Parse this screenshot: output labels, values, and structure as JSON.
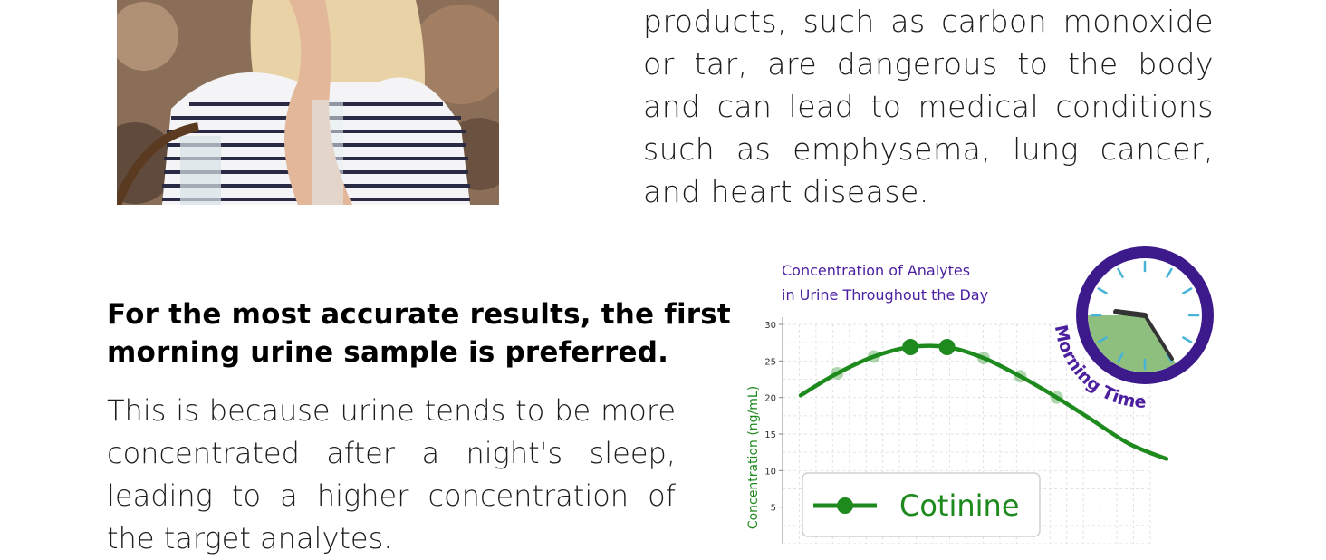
{
  "top_paragraph": {
    "lines": [
      "products, such as carbon monoxide",
      "or tar, are dangerous to the body",
      "and can lead to medical conditions",
      "such as emphysema, lung cancer,",
      "and heart disease."
    ]
  },
  "heading": {
    "line1": "For the most accurate results, the first",
    "line2": "morning urine sample is preferred."
  },
  "bottom_paragraph": {
    "lines": [
      "This is because urine tends to be more",
      "concentrated after a night's sleep,",
      "leading to a higher concentration of",
      "the target analytes."
    ]
  },
  "clock": {
    "label": "Morning Time",
    "ring_color": "#3d1a8c",
    "wedge_color": "#8fbf7f"
  },
  "chart_data": {
    "type": "line",
    "title_line1": "Concentration of Analytes",
    "title_line2": "in Urine Throughout the Day",
    "ylabel": "Concentration (ng/mL)",
    "ylim": [
      0,
      30
    ],
    "yticks": [
      5,
      10,
      15,
      20,
      25,
      30
    ],
    "grid": true,
    "legend_placement": "lower-left",
    "series": [
      {
        "name": "Cotinine",
        "color": "#1e8a1e",
        "x": [
          0,
          1,
          2,
          3,
          4,
          5,
          6,
          7,
          8,
          9,
          10
        ],
        "y": [
          20.3,
          23.3,
          25.6,
          26.9,
          26.9,
          25.4,
          22.9,
          20.0,
          16.8,
          13.6,
          11.6
        ],
        "highlighted_points": [
          3,
          4
        ],
        "faded_points": [
          1,
          2,
          5,
          6,
          7
        ]
      }
    ]
  }
}
